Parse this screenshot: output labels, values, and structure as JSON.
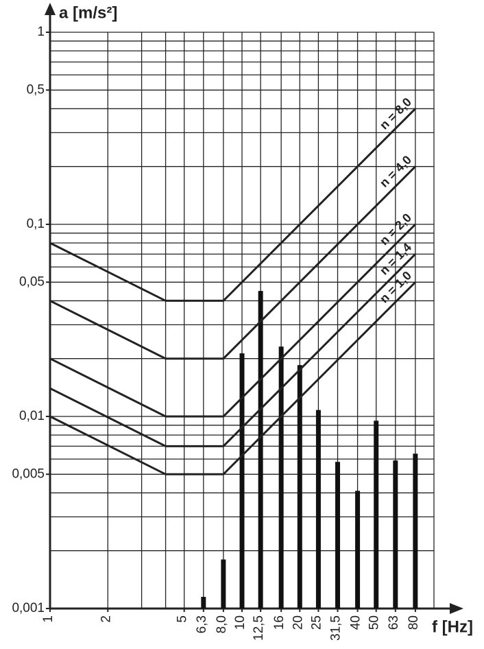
{
  "chart_data": {
    "type": "line",
    "y_label": "a [m/s²]",
    "x_label": "f [Hz]",
    "log_x": true,
    "log_y": true,
    "xlim": [
      1,
      100
    ],
    "ylim": [
      0.001,
      1
    ],
    "xticks": [
      1,
      2,
      5,
      {
        "value": 6.3,
        "label": "6,3"
      },
      {
        "value": 8,
        "label": "8,0"
      },
      10,
      {
        "value": 12.5,
        "label": "12,5"
      },
      16,
      20,
      25,
      {
        "value": 31.5,
        "label": "31,5"
      },
      40,
      50,
      63,
      80
    ],
    "yticks": [
      {
        "value": 0.001,
        "label": "0,001"
      },
      {
        "value": 0.005,
        "label": "0,005"
      },
      {
        "value": 0.01,
        "label": "0,01"
      },
      {
        "value": 0.05,
        "label": "0,05"
      },
      {
        "value": 0.1,
        "label": "0,1"
      },
      {
        "value": 0.5,
        "label": "0,5"
      },
      1
    ],
    "xgrid": [
      2,
      3,
      4,
      5,
      6.3,
      8,
      10,
      12.5,
      16,
      20,
      25,
      31.5,
      40,
      50,
      63,
      80,
      100
    ],
    "ygrid": [
      0.002,
      0.003,
      0.004,
      0.005,
      0.006,
      0.007,
      0.008,
      0.009,
      0.01,
      0.02,
      0.03,
      0.04,
      0.05,
      0.06,
      0.07,
      0.08,
      0.09,
      0.1,
      0.2,
      0.3,
      0.4,
      0.5,
      0.6,
      0.7,
      0.8,
      0.9,
      1
    ],
    "grid": true,
    "color": "#222222",
    "x": [
      1,
      4,
      8,
      80
    ],
    "series": [
      {
        "name": "n = 1,0",
        "color": "#222222",
        "values": [
          0.01,
          0.005,
          0.005,
          0.05
        ]
      },
      {
        "name": "n = 1,4",
        "color": "#222222",
        "values": [
          0.014,
          0.007,
          0.007,
          0.07
        ]
      },
      {
        "name": "n = 2,0",
        "color": "#222222",
        "values": [
          0.02,
          0.01,
          0.01,
          0.1
        ]
      },
      {
        "name": "n = 4,0",
        "color": "#222222",
        "values": [
          0.04,
          0.02,
          0.02,
          0.2
        ]
      },
      {
        "name": "n = 8,0",
        "color": "#222222",
        "values": [
          0.08,
          0.04,
          0.04,
          0.4
        ]
      }
    ],
    "bars": {
      "type": "bar",
      "color": "#111111",
      "x": [
        6.3,
        8,
        10,
        12.5,
        16,
        20,
        25,
        31.5,
        40,
        50,
        63,
        80
      ],
      "values": [
        0.00115,
        0.0018,
        0.0213,
        0.045,
        0.0231,
        0.0185,
        0.0108,
        0.0058,
        0.0041,
        0.0095,
        0.0059,
        0.0064
      ]
    }
  }
}
